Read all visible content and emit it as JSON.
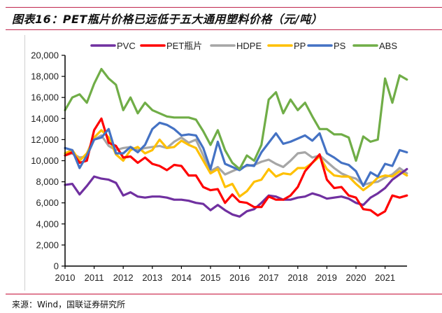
{
  "figure": {
    "title": "图表16：PET瓶片价格已远低于五大通用塑料价格（元/吨）",
    "source": "来源：Wind，国联证券研究所"
  },
  "colors": {
    "rule": "#c0264d",
    "PVC": "#7030a0",
    "PET": "#ff0000",
    "HDPE": "#a6a6a6",
    "PP": "#ffc000",
    "PS": "#4472c4",
    "ABS": "#70ad47"
  },
  "chart_data": {
    "type": "line",
    "title": "PET瓶片价格已远低于五大通用塑料价格（元/吨）",
    "xlabel": "",
    "ylabel": "",
    "xlim": [
      2010,
      2021.85
    ],
    "ylim": [
      0,
      20000
    ],
    "yticks": [
      0,
      2000,
      4000,
      6000,
      8000,
      10000,
      12000,
      14000,
      16000,
      18000,
      20000
    ],
    "ytick_labels": [
      "0",
      "2,000",
      "4,000",
      "6,000",
      "8,000",
      "10,000",
      "12,000",
      "14,000",
      "16,000",
      "18,000",
      "20,000"
    ],
    "xticks": [
      2010,
      2011,
      2012,
      2013,
      2014,
      2015,
      2016,
      2017,
      2018,
      2019,
      2020,
      2021
    ],
    "xtick_labels": [
      "2010",
      "2011",
      "2012",
      "2013",
      "2014",
      "2015",
      "2016",
      "2017",
      "2018",
      "2019",
      "2020",
      "2021"
    ],
    "grid": false,
    "legend_position": "top",
    "x": [
      2010.0,
      2010.25,
      2010.5,
      2010.75,
      2011.0,
      2011.25,
      2011.5,
      2011.75,
      2012.0,
      2012.25,
      2012.5,
      2012.75,
      2013.0,
      2013.25,
      2013.5,
      2013.75,
      2014.0,
      2014.25,
      2014.5,
      2014.75,
      2015.0,
      2015.25,
      2015.5,
      2015.75,
      2016.0,
      2016.25,
      2016.5,
      2016.75,
      2017.0,
      2017.25,
      2017.5,
      2017.75,
      2018.0,
      2018.25,
      2018.5,
      2018.75,
      2019.0,
      2019.25,
      2019.5,
      2019.75,
      2020.0,
      2020.25,
      2020.5,
      2020.75,
      2021.0,
      2021.25,
      2021.5,
      2021.75
    ],
    "series": [
      {
        "name": "PVC",
        "values": [
          7700,
          7800,
          6800,
          7600,
          8500,
          8300,
          8200,
          7900,
          6700,
          7000,
          6600,
          6500,
          6600,
          6600,
          6500,
          6300,
          6300,
          6200,
          6000,
          5900,
          5300,
          5800,
          5300,
          4900,
          4700,
          5200,
          5400,
          6000,
          6700,
          6600,
          6300,
          6300,
          6500,
          6600,
          6900,
          6700,
          6400,
          6500,
          6600,
          6400,
          6000,
          5800,
          6500,
          6900,
          7400,
          8200,
          8700,
          9200
        ]
      },
      {
        "name": "PET瓶片",
        "values": [
          10500,
          10800,
          9800,
          10000,
          12900,
          14000,
          11700,
          11400,
          10300,
          10400,
          9800,
          10300,
          9700,
          9500,
          9100,
          9600,
          9500,
          8600,
          8600,
          7500,
          7200,
          7300,
          6000,
          6800,
          6100,
          6000,
          5600,
          5600,
          6600,
          6300,
          6300,
          6700,
          7500,
          9000,
          9800,
          10600,
          8200,
          7400,
          7500,
          6700,
          6500,
          5400,
          5300,
          4800,
          5200,
          6700,
          6500,
          6700
        ]
      },
      {
        "name": "HDPE",
        "values": [
          10500,
          10700,
          10300,
          10400,
          12000,
          12400,
          11400,
          11000,
          11200,
          11300,
          11000,
          11200,
          11300,
          11400,
          11200,
          11800,
          12200,
          11700,
          12000,
          10500,
          9000,
          9400,
          8700,
          9000,
          9300,
          9500,
          9600,
          9900,
          10100,
          9700,
          9400,
          10000,
          10700,
          10800,
          10300,
          10500,
          9900,
          9300,
          8800,
          8500,
          8300,
          7700,
          7900,
          8000,
          8400,
          8700,
          9300,
          8800
        ]
      },
      {
        "name": "PP",
        "values": [
          10700,
          11000,
          10000,
          10700,
          12200,
          12900,
          12200,
          10600,
          10000,
          11000,
          11300,
          10700,
          11000,
          12000,
          11200,
          11300,
          11900,
          11500,
          11200,
          10000,
          8800,
          9200,
          7500,
          7800,
          6600,
          7100,
          8000,
          8200,
          9200,
          8500,
          8800,
          8700,
          9300,
          9300,
          9800,
          10400,
          9200,
          8600,
          8500,
          8500,
          7800,
          7200,
          7700,
          8400,
          8600,
          8500,
          9000,
          8600
        ]
      },
      {
        "name": "PS",
        "values": [
          11200,
          11000,
          9300,
          10500,
          12000,
          12200,
          13000,
          10700,
          10700,
          11300,
          10800,
          11500,
          13000,
          13600,
          13400,
          13000,
          12400,
          12500,
          12400,
          11200,
          9200,
          11800,
          9700,
          9400,
          9100,
          9600,
          9500,
          10800,
          11700,
          12600,
          11600,
          11800,
          12100,
          12400,
          11900,
          12600,
          10700,
          10300,
          9800,
          9600,
          9000,
          7600,
          8900,
          8500,
          9700,
          9500,
          11000,
          10800
        ]
      },
      {
        "name": "ABS",
        "values": [
          14800,
          16000,
          16300,
          15500,
          17300,
          18700,
          17800,
          17200,
          14800,
          16000,
          14500,
          15500,
          14800,
          14500,
          14200,
          14100,
          14100,
          14100,
          13900,
          12800,
          11500,
          12900,
          11000,
          9800,
          9200,
          10500,
          10000,
          11500,
          15800,
          16500,
          14500,
          15800,
          14800,
          15500,
          14200,
          13000,
          13000,
          12500,
          12500,
          12200,
          10000,
          12300,
          11800,
          12000,
          17800,
          15500,
          18100,
          17700
        ]
      }
    ]
  }
}
